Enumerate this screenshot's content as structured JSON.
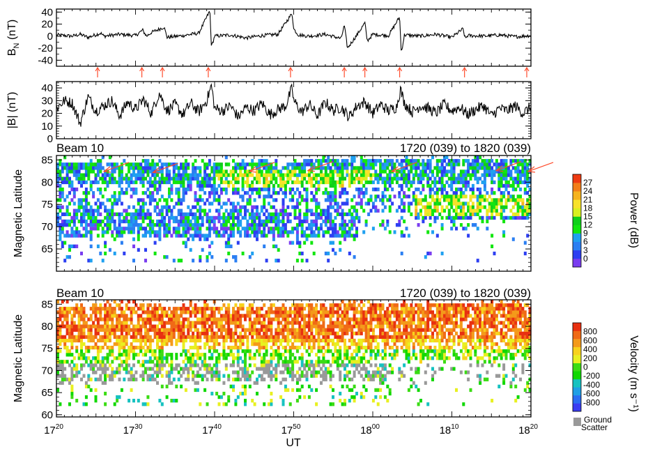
{
  "chart_data": [
    {
      "type": "line",
      "ylabel_main": "B",
      "ylabel_sub": "N",
      "ylabel_unit": " (nT)",
      "ylim": [
        -50,
        45
      ],
      "yticks": [
        "40",
        "20",
        "0",
        "-20",
        "-40"
      ],
      "ytick_values": [
        40,
        20,
        0,
        -20,
        -40
      ],
      "xlim_minutes": [
        0,
        60
      ],
      "event_markers_minutes": [
        5.2,
        10.8,
        13.4,
        19.2,
        29.6,
        36.4,
        39.0,
        43.4,
        51.6,
        64.4
      ],
      "series": [
        {
          "x": [
            0,
            2,
            3,
            4,
            5.6,
            6,
            8,
            10,
            10.9,
            11.4,
            12,
            13.6,
            14,
            16,
            18,
            19.4,
            19.6,
            20,
            22,
            24,
            26,
            28,
            29.8,
            30,
            30.6,
            32,
            34,
            36,
            36.4,
            36.8,
            38,
            39.0,
            39.3,
            40,
            42,
            43.4,
            43.6,
            44,
            46,
            48,
            50,
            51.4,
            51.7,
            52,
            54,
            56,
            58,
            60
          ],
          "y": [
            2,
            0,
            3,
            -2,
            5,
            0,
            3,
            1,
            10,
            0,
            6,
            15,
            -2,
            1,
            5,
            42,
            -18,
            0,
            2,
            -3,
            1,
            3,
            38,
            12,
            2,
            0,
            3,
            -4,
            18,
            -20,
            2,
            22,
            -8,
            3,
            1,
            32,
            -28,
            2,
            0,
            3,
            -2,
            12,
            -4,
            1,
            0,
            2,
            -1,
            1
          ]
        }
      ]
    },
    {
      "type": "line",
      "ylabel": "|B| (nT)",
      "ylim": [
        0,
        45
      ],
      "yticks": [
        "40",
        "30",
        "20",
        "10",
        "0"
      ],
      "ytick_values": [
        40,
        30,
        20,
        10,
        0
      ],
      "xlim_minutes": [
        0,
        60
      ],
      "series": [
        {
          "x": [
            0,
            1,
            2,
            3,
            4,
            5,
            6,
            7,
            8,
            9,
            10,
            11,
            12,
            13,
            14,
            15,
            16,
            17,
            18,
            19,
            19.6,
            20,
            21,
            22,
            23,
            24,
            25,
            26,
            27,
            28,
            29,
            29.8,
            30,
            31,
            32,
            33,
            34,
            35,
            36,
            37,
            38,
            39,
            40,
            41,
            42,
            43,
            43.5,
            44,
            45,
            46,
            47,
            48,
            49,
            50,
            51,
            52,
            53,
            54,
            55,
            56,
            57,
            58,
            59,
            60
          ],
          "y": [
            24,
            30,
            28,
            12,
            33,
            22,
            26,
            30,
            18,
            29,
            23,
            31,
            20,
            36,
            22,
            27,
            19,
            28,
            21,
            30,
            42,
            24,
            22,
            26,
            17,
            25,
            22,
            28,
            19,
            23,
            26,
            40,
            30,
            21,
            27,
            18,
            29,
            22,
            25,
            17,
            26,
            29,
            20,
            27,
            22,
            25,
            39,
            28,
            21,
            26,
            24,
            20,
            27,
            22,
            25,
            19,
            23,
            26,
            18,
            24,
            22,
            26,
            20,
            25
          ]
        }
      ]
    },
    {
      "type": "heatmap",
      "title": "Beam 10",
      "time_range": "1720 (039) to 1820 (039)",
      "ylabel": "Magnetic Latitude",
      "ylim": [
        60,
        86
      ],
      "yticks": [
        "85",
        "80",
        "75",
        "70",
        "65"
      ],
      "ytick_values": [
        85,
        80,
        75,
        70,
        65
      ],
      "xlim_minutes": [
        0,
        60
      ],
      "colorbar_label": "Power (dB)",
      "colorbar_ticks": [
        "27",
        "24",
        "21",
        "18",
        "15",
        "12",
        "9",
        "6",
        "3",
        "0"
      ],
      "colorbar_range": [
        0,
        30
      ],
      "arrow_tips_minutes": [
        6.0,
        12.2,
        24.4,
        31.8,
        42.4,
        55.6,
        63.6
      ],
      "arrow_tip_latitudes": [
        82.4,
        82.2,
        82.4,
        82.6,
        82.4,
        82.6,
        82.4
      ]
    },
    {
      "type": "heatmap",
      "title": "Beam 10",
      "time_range": "1720 (039) to 1820 (039)",
      "ylabel": "Magnetic Latitude",
      "ylim": [
        59.5,
        86
      ],
      "yticks": [
        "85",
        "80",
        "75",
        "70",
        "65",
        "60"
      ],
      "ytick_values": [
        85,
        80,
        75,
        70,
        65,
        60
      ],
      "xlim_minutes": [
        0,
        60
      ],
      "colorbar_label": "Velocity (m s⁻¹)",
      "colorbar_ticks": [
        "800",
        "600",
        "400",
        "200",
        "0",
        "-200",
        "-400",
        "-600",
        "-800"
      ],
      "colorbar_range": [
        -1000,
        1000
      ],
      "ground_scatter_label_1": "Ground",
      "ground_scatter_label_2": "Scatter",
      "ground_scatter_color": "#999999"
    }
  ],
  "x_axis": {
    "label": "UT",
    "ticks": [
      {
        "hour": "17",
        "minute": "20",
        "value": 0
      },
      {
        "hour": "17",
        "minute": "30",
        "value": 10
      },
      {
        "hour": "17",
        "minute": "40",
        "value": 20
      },
      {
        "hour": "17",
        "minute": "50",
        "value": 30
      },
      {
        "hour": "18",
        "minute": "00",
        "value": 40
      },
      {
        "hour": "18",
        "minute": "10",
        "value": 50
      },
      {
        "hour": "18",
        "minute": "20",
        "value": 60
      }
    ]
  },
  "colors": {
    "arrow": "#ff4a2a",
    "power_scale": [
      "#7a3df0",
      "#2d3ff2",
      "#2b7ff2",
      "#1fa0f0",
      "#12e60f",
      "#0fcf1a",
      "#d8f020",
      "#f8e22a",
      "#f6b31d",
      "#f27e19",
      "#ee3b12"
    ],
    "velocity_scale": [
      "#3a3df2",
      "#2a6df2",
      "#1f9fe5",
      "#16c2c0",
      "#10d800",
      "#3bdc14",
      "#e8f020",
      "#f8d21c",
      "#f49a1a",
      "#f06a16",
      "#e83010"
    ]
  }
}
